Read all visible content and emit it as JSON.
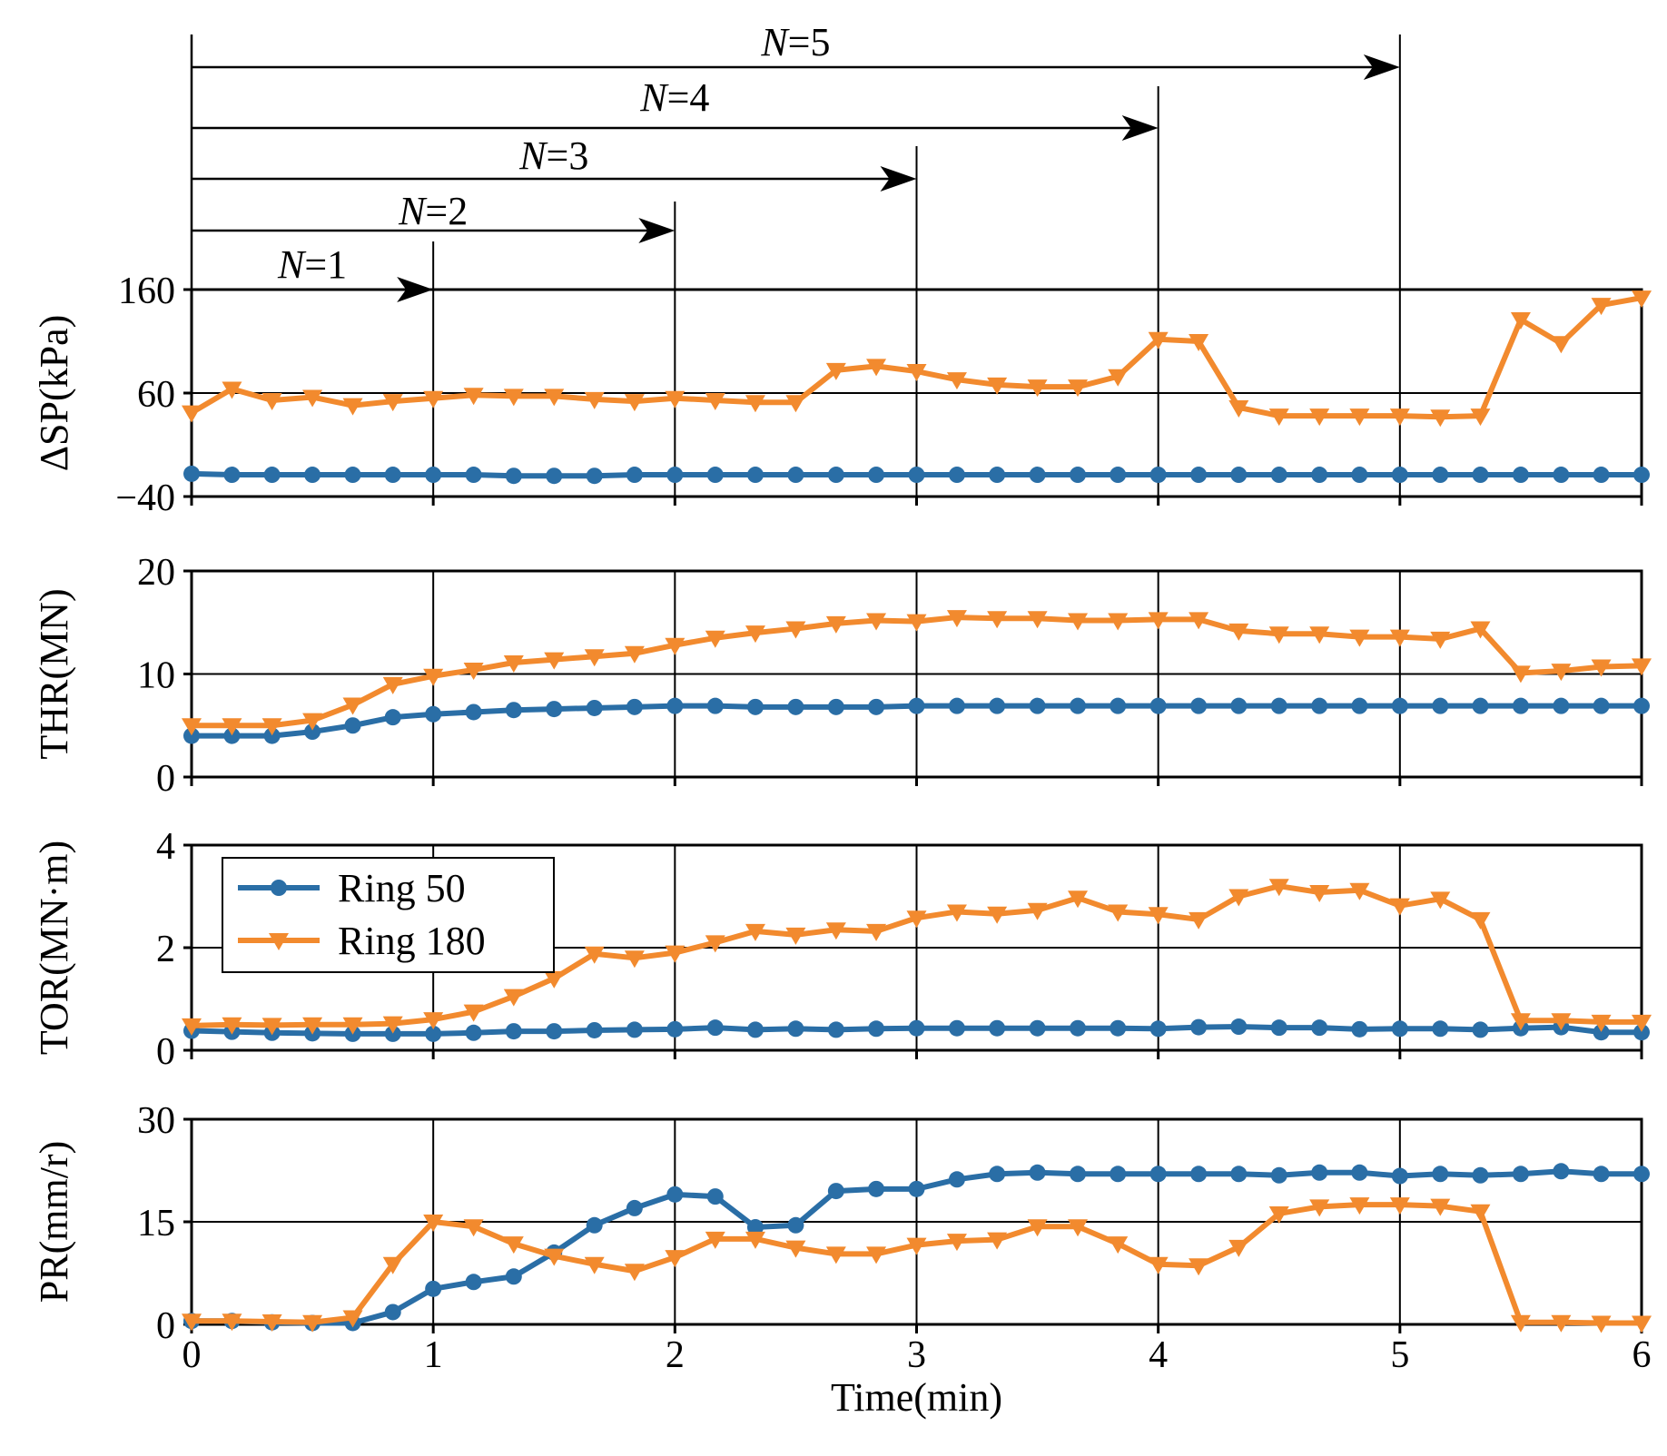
{
  "chart_data": {
    "type": "line",
    "x_label": "Time(min)",
    "x_ticks": [
      "0",
      "1",
      "2",
      "3",
      "4",
      "5",
      "6"
    ],
    "x_range": [
      0,
      6
    ],
    "legend": {
      "location": "upper-left of TOR panel",
      "entries": [
        "Ring 50",
        "Ring 180"
      ]
    },
    "series_colors": {
      "Ring 50": "#2a6ea6",
      "Ring 180": "#f28a2e"
    },
    "markers": {
      "Ring 50": "circle",
      "Ring 180": "triangle-down"
    },
    "x": [
      0,
      0.167,
      0.333,
      0.5,
      0.667,
      0.833,
      1.0,
      1.167,
      1.333,
      1.5,
      1.667,
      1.833,
      2.0,
      2.167,
      2.333,
      2.5,
      2.667,
      2.833,
      3.0,
      3.167,
      3.333,
      3.5,
      3.667,
      3.833,
      4.0,
      4.167,
      4.333,
      4.5,
      4.667,
      4.833,
      5.0,
      5.167,
      5.333,
      5.5,
      5.667,
      5.833,
      6.0
    ],
    "cycle_annotations": [
      {
        "label_italic": "N",
        "label_rest": "=1",
        "t": 1
      },
      {
        "label_italic": "N",
        "label_rest": "=2",
        "t": 2
      },
      {
        "label_italic": "N",
        "label_rest": "=3",
        "t": 3
      },
      {
        "label_italic": "N",
        "label_rest": "=4",
        "t": 4
      },
      {
        "label_italic": "N",
        "label_rest": "=5",
        "t": 5
      }
    ],
    "panels": [
      {
        "ylabel": "ΔSP(kPa)",
        "ylim": [
          -40,
          160
        ],
        "yticks": [
          -40,
          60,
          160
        ],
        "ytick_labels": [
          "−40",
          "60",
          "160"
        ],
        "series": [
          {
            "name": "Ring 50",
            "values": [
              -18,
              -19,
              -19,
              -19,
              -19,
              -19,
              -19,
              -19,
              -20,
              -20,
              -20,
              -19,
              -19,
              -19,
              -19,
              -19,
              -19,
              -19,
              -19,
              -19,
              -19,
              -19,
              -19,
              -19,
              -19,
              -19,
              -19,
              -19,
              -19,
              -19,
              -19,
              -19,
              -19,
              -19,
              -19,
              -19,
              -19
            ]
          },
          {
            "name": "Ring 180",
            "values": [
              41,
              64,
              53,
              56,
              48,
              52,
              55,
              58,
              57,
              57,
              54,
              52,
              55,
              53,
              51,
              51,
              82,
              86,
              81,
              73,
              68,
              66,
              66,
              76,
              112,
              110,
              46,
              38,
              38,
              38,
              38,
              37,
              38,
              131,
              108,
              145,
              152
            ]
          }
        ]
      },
      {
        "ylabel": "THR(MN)",
        "ylim": [
          0,
          20
        ],
        "yticks": [
          0,
          10,
          20
        ],
        "ytick_labels": [
          "0",
          "10",
          "20"
        ],
        "series": [
          {
            "name": "Ring 50",
            "values": [
              4.0,
              4.0,
              4.0,
              4.4,
              5.0,
              5.8,
              6.1,
              6.3,
              6.5,
              6.6,
              6.7,
              6.8,
              6.9,
              6.9,
              6.8,
              6.8,
              6.8,
              6.8,
              6.9,
              6.9,
              6.9,
              6.9,
              6.9,
              6.9,
              6.9,
              6.9,
              6.9,
              6.9,
              6.9,
              6.9,
              6.9,
              6.9,
              6.9,
              6.9,
              6.9,
              6.9,
              6.9
            ]
          },
          {
            "name": "Ring 180",
            "values": [
              5.0,
              5.0,
              5.0,
              5.5,
              7.0,
              9.0,
              9.8,
              10.4,
              11.1,
              11.4,
              11.7,
              12.0,
              12.8,
              13.5,
              14.0,
              14.4,
              14.9,
              15.2,
              15.1,
              15.5,
              15.4,
              15.4,
              15.2,
              15.2,
              15.3,
              15.3,
              14.2,
              13.9,
              13.9,
              13.6,
              13.6,
              13.4,
              14.4,
              10.1,
              10.3,
              10.7,
              10.8
            ]
          }
        ]
      },
      {
        "ylabel": "TOR(MN·m)",
        "ylim": [
          0,
          4
        ],
        "yticks": [
          0,
          2,
          4
        ],
        "ytick_labels": [
          "0",
          "2",
          "4"
        ],
        "series": [
          {
            "name": "Ring 50",
            "values": [
              0.38,
              0.36,
              0.34,
              0.33,
              0.32,
              0.32,
              0.32,
              0.34,
              0.37,
              0.37,
              0.39,
              0.4,
              0.41,
              0.44,
              0.4,
              0.42,
              0.4,
              0.42,
              0.43,
              0.43,
              0.43,
              0.43,
              0.43,
              0.43,
              0.42,
              0.45,
              0.46,
              0.44,
              0.44,
              0.41,
              0.42,
              0.42,
              0.4,
              0.43,
              0.45,
              0.35,
              0.35
            ]
          },
          {
            "name": "Ring 180",
            "values": [
              0.48,
              0.5,
              0.49,
              0.5,
              0.5,
              0.52,
              0.6,
              0.75,
              1.05,
              1.4,
              1.88,
              1.8,
              1.9,
              2.1,
              2.32,
              2.25,
              2.35,
              2.32,
              2.58,
              2.7,
              2.66,
              2.73,
              2.97,
              2.7,
              2.65,
              2.55,
              3.0,
              3.2,
              3.08,
              3.12,
              2.82,
              2.95,
              2.55,
              0.58,
              0.58,
              0.55,
              0.55
            ]
          }
        ]
      },
      {
        "ylabel": "PR(mm/r)",
        "ylim": [
          0,
          30
        ],
        "yticks": [
          0,
          15,
          30
        ],
        "ytick_labels": [
          "0",
          "15",
          "30"
        ],
        "series": [
          {
            "name": "Ring 50",
            "values": [
              0.5,
              0.5,
              0.3,
              0.2,
              0.2,
              1.8,
              5.2,
              6.2,
              7.0,
              10.5,
              14.5,
              17.0,
              19.0,
              18.7,
              14.2,
              14.5,
              19.5,
              19.8,
              19.8,
              21.2,
              22.0,
              22.2,
              22.0,
              22.0,
              22.0,
              22.0,
              22.0,
              21.8,
              22.2,
              22.2,
              21.7,
              22.0,
              21.8,
              22.0,
              22.4,
              22.0,
              22.0
            ]
          },
          {
            "name": "Ring 180",
            "values": [
              0.5,
              0.5,
              0.4,
              0.3,
              1.0,
              8.8,
              15.0,
              14.3,
              11.8,
              10.0,
              8.8,
              7.8,
              9.8,
              12.5,
              12.5,
              11.2,
              10.3,
              10.3,
              11.6,
              12.2,
              12.4,
              14.3,
              14.3,
              11.8,
              8.8,
              8.6,
              11.3,
              16.2,
              17.2,
              17.5,
              17.5,
              17.3,
              16.5,
              0.3,
              0.3,
              0.2,
              0.2
            ]
          }
        ]
      }
    ]
  }
}
